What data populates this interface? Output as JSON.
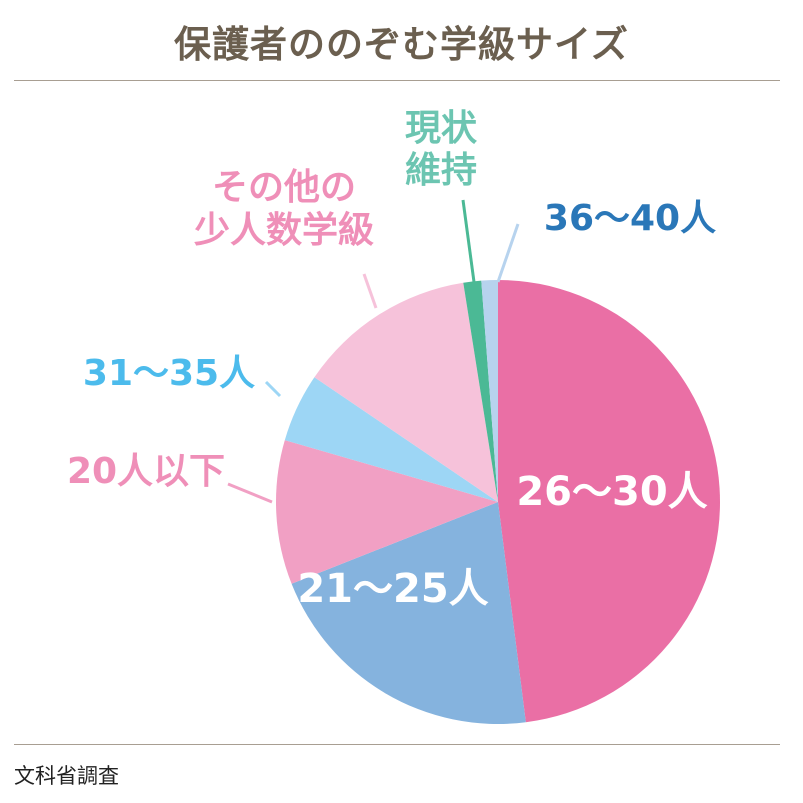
{
  "chart_data": {
    "type": "pie",
    "title": "保護者ののぞむ学級サイズ",
    "source": "文科省調査",
    "start_angle_deg": 0,
    "direction": "clockwise",
    "slices": [
      {
        "label": "26〜30人",
        "value": 48.0,
        "color": "#ea6fa5",
        "label_color": "#ffffff"
      },
      {
        "label": "21〜25人",
        "value": 21.0,
        "color": "#85b3de",
        "label_color": "#ffffff"
      },
      {
        "label": "20人以下",
        "value": 10.5,
        "color": "#f1a0c4",
        "label_color": "#ef8fb8"
      },
      {
        "label": "31〜35人",
        "value": 5.0,
        "color": "#9dd6f5",
        "label_color": "#4cbbec"
      },
      {
        "label": [
          "その他の",
          "少人数学級"
        ],
        "value": 13.0,
        "color": "#f6c2da",
        "label_color": "#ef8fb8"
      },
      {
        "label": [
          "現状",
          "維持"
        ],
        "value": 1.3,
        "color": "#4bb995",
        "label_color": "#6cc5b1"
      },
      {
        "label": "36〜40人",
        "value": 1.2,
        "color": "#b7d3ee",
        "label_color": "#2a77b8"
      }
    ]
  }
}
